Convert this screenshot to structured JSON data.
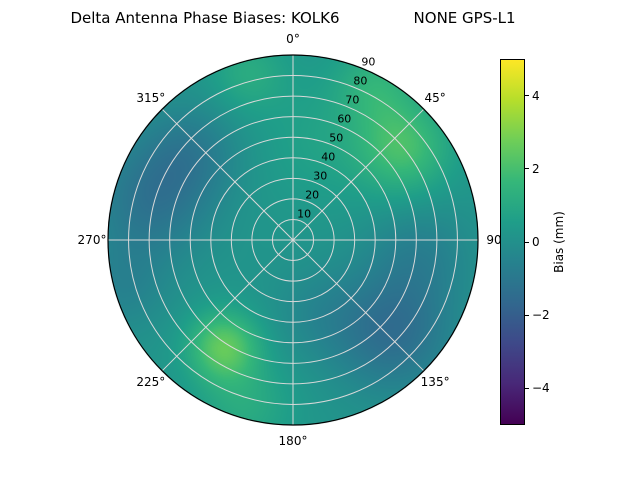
{
  "figure": {
    "background": "#ffffff"
  },
  "chart_data": {
    "type": "heatmap",
    "projection": "polar",
    "title": "Delta Antenna Phase Biases: KOLK6          NONE GPS-L1",
    "title_parts": {
      "left": "Delta Antenna Phase Biases: KOLK6",
      "right": "NONE GPS-L1"
    },
    "azimuth_axis": {
      "direction": "clockwise",
      "zero_location": "top",
      "ticks": [
        {
          "az": 0,
          "label": "0°"
        },
        {
          "az": 45,
          "label": "45°"
        },
        {
          "az": 90,
          "label": "90"
        },
        {
          "az": 135,
          "label": "135°"
        },
        {
          "az": 180,
          "label": "180°"
        },
        {
          "az": 225,
          "label": "225°"
        },
        {
          "az": 270,
          "label": "270°"
        },
        {
          "az": 315,
          "label": "315°"
        }
      ]
    },
    "radial_axis": {
      "min": 0,
      "max": 90,
      "label_angle_deg": 23,
      "ticks": [
        {
          "value": 10,
          "label": "10"
        },
        {
          "value": 20,
          "label": "20"
        },
        {
          "value": 30,
          "label": "30"
        },
        {
          "value": 40,
          "label": "40"
        },
        {
          "value": 50,
          "label": "50"
        },
        {
          "value": 60,
          "label": "60"
        },
        {
          "value": 70,
          "label": "70"
        },
        {
          "value": 80,
          "label": "80"
        },
        {
          "value": 90,
          "label": "90"
        }
      ]
    },
    "colorbar": {
      "label": "Bias (mm)",
      "vmin": -5,
      "vmax": 5,
      "ticks": [
        {
          "value": 4,
          "label": "4"
        },
        {
          "value": 2,
          "label": "2"
        },
        {
          "value": 0,
          "label": "0"
        },
        {
          "value": -2,
          "label": "−2"
        },
        {
          "value": -4,
          "label": "−4"
        }
      ]
    },
    "colormap": {
      "name": "viridis",
      "stops": [
        "#440154",
        "#482878",
        "#3e4989",
        "#31688e",
        "#26828e",
        "#1f9e89",
        "#35b779",
        "#6ece58",
        "#b5de2b",
        "#fde725"
      ]
    },
    "grid": {
      "color": "#d9d9d9",
      "outline_color": "#000000",
      "spoke_step_deg": 45,
      "ring_step_deg": 10
    },
    "field": {
      "units": "mm",
      "base": 0.2,
      "blobs": [
        {
          "az": 50,
          "zen": 70,
          "amp": 1.8,
          "sigma": 16
        },
        {
          "az": 28,
          "zen": 86,
          "amp": 1.1,
          "sigma": 14
        },
        {
          "az": 345,
          "zen": 84,
          "amp": 0.9,
          "sigma": 13
        },
        {
          "az": 15,
          "zen": 50,
          "amp": 0.5,
          "sigma": 22
        },
        {
          "az": 310,
          "zen": 66,
          "amp": -1.0,
          "sigma": 17
        },
        {
          "az": 285,
          "zen": 72,
          "amp": -1.3,
          "sigma": 20
        },
        {
          "az": 255,
          "zen": 86,
          "amp": -0.7,
          "sigma": 16
        },
        {
          "az": 213,
          "zen": 62,
          "amp": 2.3,
          "sigma": 12
        },
        {
          "az": 196,
          "zen": 84,
          "amp": 0.9,
          "sigma": 16
        },
        {
          "az": 133,
          "zen": 66,
          "amp": -1.6,
          "sigma": 20
        },
        {
          "az": 97,
          "zen": 62,
          "amp": -0.8,
          "sigma": 18
        },
        {
          "az": 160,
          "zen": 38,
          "amp": -0.5,
          "sigma": 16
        }
      ]
    }
  }
}
